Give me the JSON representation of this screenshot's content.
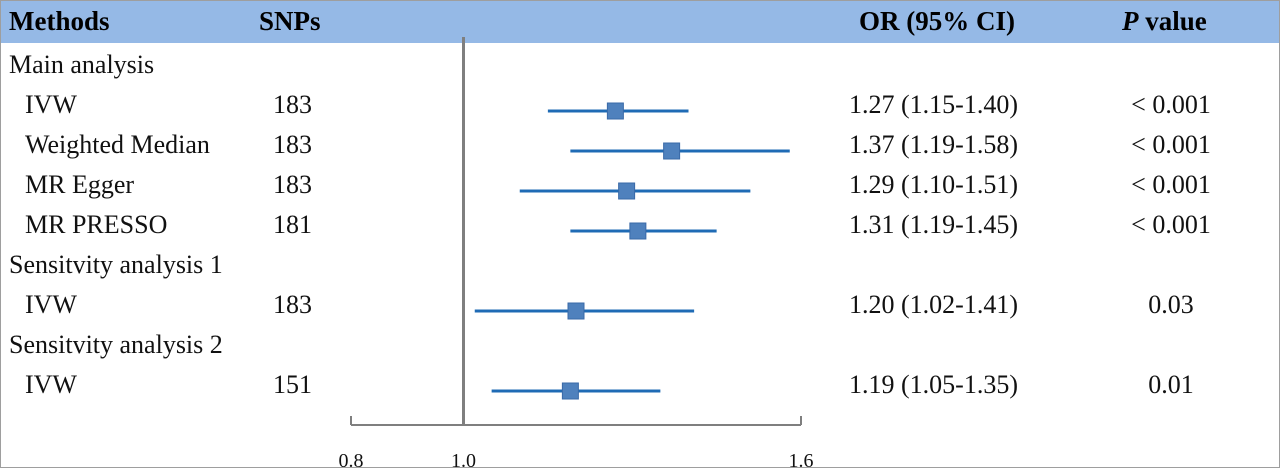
{
  "header": {
    "methods": "Methods",
    "snps": "SNPs",
    "or": "OR (95% CI)",
    "p_italic": "P",
    "p_rest": " value"
  },
  "colors": {
    "header_bg": "#95b9e6",
    "marker": "#4f81bd",
    "ci_line": "#1f6bb5",
    "axis": "#7f7f7f"
  },
  "chart_data": {
    "type": "forest",
    "xlim": [
      0.8,
      1.6
    ],
    "axis_ticks": [
      0.8,
      1.0,
      1.6
    ],
    "tick_labels": [
      "0.8",
      "1.0",
      "1.6"
    ],
    "reference_line": 1.0,
    "rows": [
      {
        "kind": "section",
        "label": "Main analysis"
      },
      {
        "kind": "item",
        "label": "IVW",
        "snps": "183",
        "or": 1.27,
        "lo": 1.15,
        "hi": 1.4,
        "or_text": "1.27 (1.15-1.40)",
        "p": "< 0.001"
      },
      {
        "kind": "item",
        "label": "Weighted Median",
        "snps": "183",
        "or": 1.37,
        "lo": 1.19,
        "hi": 1.58,
        "or_text": "1.37 (1.19-1.58)",
        "p": "< 0.001"
      },
      {
        "kind": "item",
        "label": "MR Egger",
        "snps": "183",
        "or": 1.29,
        "lo": 1.1,
        "hi": 1.51,
        "or_text": "1.29 (1.10-1.51)",
        "p": "< 0.001"
      },
      {
        "kind": "item",
        "label": "MR PRESSO",
        "snps": "181",
        "or": 1.31,
        "lo": 1.19,
        "hi": 1.45,
        "or_text": "1.31 (1.19-1.45)",
        "p": "< 0.001"
      },
      {
        "kind": "section",
        "label": "Sensitvity analysis 1"
      },
      {
        "kind": "item",
        "label": "IVW",
        "snps": "183",
        "or": 1.2,
        "lo": 1.02,
        "hi": 1.41,
        "or_text": "1.20 (1.02-1.41)",
        "p": "0.03"
      },
      {
        "kind": "section",
        "label": "Sensitvity analysis 2"
      },
      {
        "kind": "item",
        "label": "IVW",
        "snps": "151",
        "or": 1.19,
        "lo": 1.05,
        "hi": 1.35,
        "or_text": "1.19 (1.05-1.35)",
        "p": "0.01"
      }
    ]
  }
}
